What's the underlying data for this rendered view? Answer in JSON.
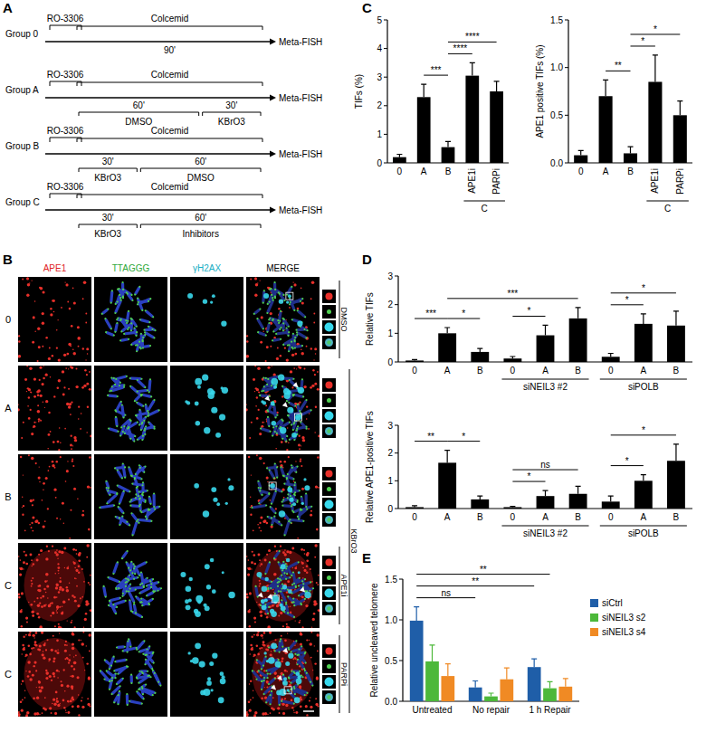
{
  "panels": [
    "A",
    "B",
    "C",
    "D",
    "E"
  ],
  "schematic": {
    "groups": [
      {
        "label": "Group 0",
        "sync": "RO-3306",
        "arrest": "Colcemid",
        "readout": "Meta-FISH",
        "total": "90'"
      },
      {
        "label": "Group A",
        "sync": "RO-3306",
        "arrest": "Colcemid",
        "readout": "Meta-FISH",
        "treatments": [
          {
            "time": "60'",
            "agent": "DMSO"
          },
          {
            "time": "30'",
            "agent": "KBrO3"
          }
        ]
      },
      {
        "label": "Group B",
        "sync": "RO-3306",
        "arrest": "Colcemid",
        "readout": "Meta-FISH",
        "treatments": [
          {
            "time": "30'",
            "agent": "KBrO3"
          },
          {
            "time": "60'",
            "agent": "DMSO"
          }
        ]
      },
      {
        "label": "Group C",
        "sync": "RO-3306",
        "arrest": "Colcemid",
        "readout": "Meta-FISH",
        "treatments": [
          {
            "time": "30'",
            "agent": "KBrO3"
          },
          {
            "time": "60'",
            "agent": "Inhibitors"
          }
        ]
      }
    ]
  },
  "microscopy": {
    "channels": [
      "APE1",
      "TTAGGG",
      "γH2AX",
      "MERGE"
    ],
    "rows": [
      "0",
      "A",
      "B",
      "C",
      "C"
    ],
    "side_labels": [
      {
        "label": "DMSO",
        "first": 0,
        "last": 0
      },
      {
        "label": "KBrO3",
        "first": 1,
        "last": 4
      },
      {
        "label": "APE1i",
        "first": 3,
        "last": 3
      },
      {
        "label": "PARPi",
        "first": 4,
        "last": 4
      }
    ]
  },
  "chart_data": [
    {
      "type": "bar",
      "y_label": "TIFs (%)",
      "categories": [
        "0",
        "A",
        "B",
        "APE1i",
        "PARPi"
      ],
      "values": [
        0.2,
        2.3,
        0.55,
        3.05,
        2.5
      ],
      "errors": [
        0.1,
        0.45,
        0.2,
        0.45,
        0.35
      ],
      "color": "#000000",
      "ylim": [
        0,
        5
      ],
      "yticks": [
        0,
        1,
        2,
        3,
        4,
        5
      ],
      "groups": [
        {
          "label": "C",
          "first": 3,
          "last": 4
        }
      ],
      "comparisons": [
        {
          "label": "***",
          "from": 1,
          "to": 2
        },
        {
          "label": "****",
          "from": 2,
          "to": 3
        },
        {
          "label": "****",
          "from": 2,
          "to": 4
        }
      ]
    },
    {
      "type": "bar",
      "y_label": "APE1 positive TIFs (%)",
      "categories": [
        "0",
        "A",
        "B",
        "APE1i",
        "PARPi"
      ],
      "values": [
        0.08,
        0.7,
        0.1,
        0.85,
        0.5
      ],
      "errors": [
        0.05,
        0.17,
        0.07,
        0.28,
        0.15
      ],
      "color": "#000000",
      "ylim": [
        0,
        1.5
      ],
      "yticks": [
        {
          "value": 0,
          "label": "0.0"
        },
        {
          "value": 0.5,
          "label": "0.5"
        },
        {
          "value": 1,
          "label": "1.0"
        },
        {
          "value": 1.5,
          "label": "1.5"
        }
      ],
      "groups": [
        {
          "label": "C",
          "first": 3,
          "last": 4
        }
      ],
      "comparisons": [
        {
          "label": "**",
          "from": 1,
          "to": 2
        },
        {
          "label": "*",
          "from": 2,
          "to": 3
        },
        {
          "label": "*",
          "from": 2,
          "to": 4
        }
      ]
    },
    {
      "type": "bar",
      "y_label": "Relative TIFs",
      "categories": [
        "0",
        "A",
        "B",
        "0",
        "A",
        "B",
        "0",
        "A",
        "B"
      ],
      "values": [
        0.05,
        1.0,
        0.35,
        0.12,
        0.93,
        1.52,
        0.18,
        1.33,
        1.27
      ],
      "errors": [
        0.03,
        0.2,
        0.12,
        0.07,
        0.35,
        0.38,
        0.12,
        0.35,
        0.5
      ],
      "color": "#000000",
      "ylim": [
        0,
        3
      ],
      "yticks": [
        0,
        1,
        2,
        3
      ],
      "groups": [
        {
          "label": "siNEIL3 #2",
          "first": 3,
          "last": 5
        },
        {
          "label": "siPOLB",
          "first": 6,
          "last": 8
        }
      ],
      "comparisons": [
        {
          "label": "***",
          "from": 0,
          "to": 1
        },
        {
          "label": "*",
          "from": 1,
          "to": 2
        },
        {
          "label": "*",
          "from": 3,
          "to": 4
        },
        {
          "label": "***",
          "from": 1,
          "to": 5
        },
        {
          "label": "*",
          "from": 6,
          "to": 7
        },
        {
          "label": "*",
          "from": 6,
          "to": 8
        }
      ]
    },
    {
      "type": "bar",
      "y_label": "Relative APE1-positive TIFs",
      "categories": [
        "0",
        "A",
        "B",
        "0",
        "A",
        "B",
        "0",
        "A",
        "B"
      ],
      "values": [
        0.05,
        1.65,
        0.33,
        0.05,
        0.45,
        0.53,
        0.25,
        1.0,
        1.72
      ],
      "errors": [
        0.05,
        0.45,
        0.12,
        0.03,
        0.2,
        0.27,
        0.2,
        0.22,
        0.6
      ],
      "color": "#000000",
      "ylim": [
        0,
        3
      ],
      "yticks": [
        0,
        1,
        2,
        3
      ],
      "groups": [
        {
          "label": "siNEIL3 #2",
          "first": 3,
          "last": 5
        },
        {
          "label": "siPOLB",
          "first": 6,
          "last": 8
        }
      ],
      "comparisons": [
        {
          "label": "**",
          "from": 0,
          "to": 1
        },
        {
          "label": "*",
          "from": 1,
          "to": 2
        },
        {
          "label": "*",
          "from": 3,
          "to": 4
        },
        {
          "label": "ns",
          "from": 3,
          "to": 5
        },
        {
          "label": "*",
          "from": 6,
          "to": 7
        },
        {
          "label": "*",
          "from": 6,
          "to": 8
        }
      ]
    },
    {
      "type": "bar",
      "y_label": "Relative uncleaved telomere",
      "categories": [
        "Untreated",
        "No repair",
        "1 h Repair"
      ],
      "series": [
        {
          "name": "siCtrl",
          "color": "#1f5ea8",
          "values": [
            0.99,
            0.17,
            0.42
          ],
          "errors": [
            0.17,
            0.08,
            0.1
          ]
        },
        {
          "name": "siNEIL3 s2",
          "color": "#4cb83a",
          "values": [
            0.49,
            0.06,
            0.16
          ],
          "errors": [
            0.2,
            0.04,
            0.08
          ]
        },
        {
          "name": "siNEIL3 s4",
          "color": "#f08a24",
          "values": [
            0.31,
            0.27,
            0.18
          ],
          "errors": [
            0.15,
            0.14,
            0.1
          ]
        }
      ],
      "ylim": [
        0,
        1.5
      ],
      "yticks": [
        {
          "value": 0,
          "label": "0.0"
        },
        {
          "value": 0.5,
          "label": "0.5"
        },
        {
          "value": 1,
          "label": "1.0"
        },
        {
          "value": 1.5,
          "label": "1.5"
        }
      ],
      "legend": "right",
      "comparisons": [
        {
          "label": "ns",
          "from": [
            0,
            0
          ],
          "to": [
            0,
            1
          ]
        },
        {
          "label": "**",
          "from": [
            0,
            0
          ],
          "to": [
            0,
            2
          ]
        },
        {
          "label": "**",
          "from": [
            0,
            0
          ],
          "to": [
            1,
            2
          ]
        }
      ]
    }
  ]
}
